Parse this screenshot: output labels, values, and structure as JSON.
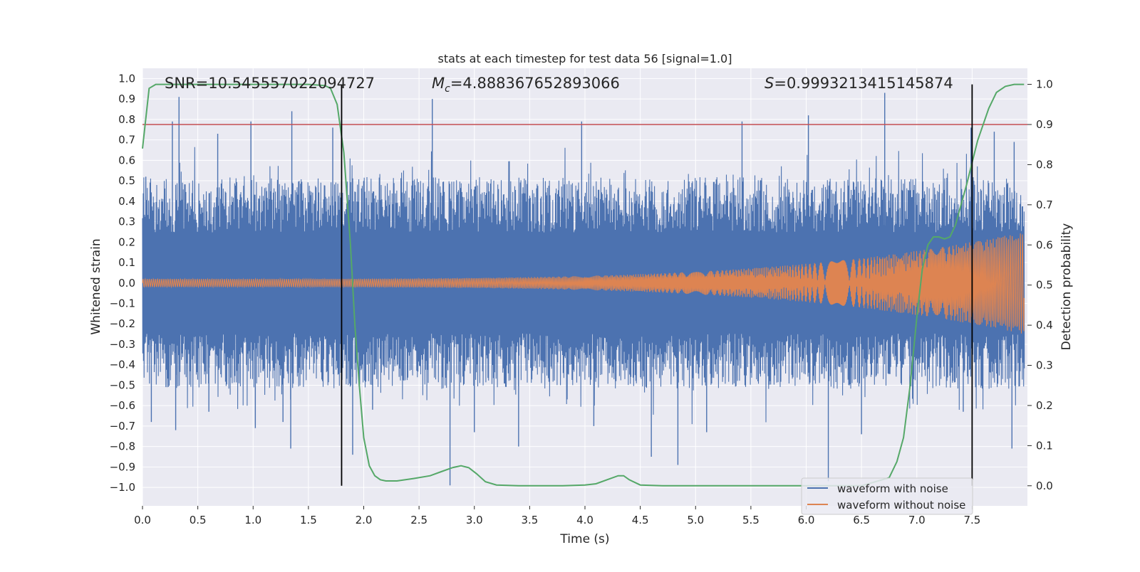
{
  "chart_data": {
    "type": "line",
    "title": "stats at each timestep for test data 56 [signal=1.0]",
    "xlabel": "Time (s)",
    "ylabel_left": "Whitened strain",
    "ylabel_right": "Detection probability",
    "xlim": [
      0.0,
      8.0
    ],
    "ylim_left": [
      -1.09,
      1.05
    ],
    "ylim_right": [
      -0.05,
      1.04
    ],
    "xticks": [
      0.0,
      0.5,
      1.0,
      1.5,
      2.0,
      2.5,
      3.0,
      3.5,
      4.0,
      4.5,
      5.0,
      5.5,
      6.0,
      6.5,
      7.0,
      7.5
    ],
    "xtick_labels": [
      "0.0",
      "0.5",
      "1.0",
      "1.5",
      "2.0",
      "2.5",
      "3.0",
      "3.5",
      "4.0",
      "4.5",
      "5.0",
      "5.5",
      "6.0",
      "6.5",
      "7.0",
      "7.5"
    ],
    "yticks_left": [
      1.0,
      0.9,
      0.8,
      0.7,
      0.6,
      0.5,
      0.4,
      0.3,
      0.2,
      0.1,
      0.0,
      -0.1,
      -0.2,
      -0.3,
      -0.4,
      -0.5,
      -0.6,
      -0.7,
      -0.8,
      -0.9,
      -1.0
    ],
    "ytick_labels_left": [
      "1.0",
      "0.9",
      "0.8",
      "0.7",
      "0.6",
      "0.5",
      "0.4",
      "0.3",
      "0.2",
      "0.1",
      "0.0",
      "−0.1",
      "−0.2",
      "−0.3",
      "−0.4",
      "−0.5",
      "−0.6",
      "−0.7",
      "−0.8",
      "−0.9",
      "−1.0"
    ],
    "yticks_right": [
      1.0,
      0.9,
      0.8,
      0.7,
      0.6,
      0.5,
      0.4,
      0.3,
      0.2,
      0.1,
      0.0
    ],
    "ytick_labels_right": [
      "1.0",
      "0.9",
      "0.8",
      "0.7",
      "0.6",
      "0.5",
      "0.4",
      "0.3",
      "0.2",
      "0.1",
      "0.0"
    ],
    "annotations": {
      "snr": "SNR=10.545557022094727",
      "mc_symbol": "M",
      "mc_subscript": "c",
      "mc_value": "=4.888367652893066",
      "s_symbol": "S",
      "s_value": "=0.9993213415145874"
    },
    "threshold": {
      "value": 0.9,
      "axis": "right",
      "color": "#c44e52"
    },
    "vlines": [
      1.8,
      7.5
    ],
    "vline_range_right": [
      0.0,
      1.0
    ],
    "series": [
      {
        "name": "waveform with noise",
        "color": "#4c72b0",
        "axis": "left",
        "envelope": {
          "t_start": 0.0,
          "t_end": 7.97,
          "typical_max": 0.45,
          "typical_min": -0.45
        },
        "peak_spikes": [
          [
            0.03,
            0.52
          ],
          [
            0.08,
            -0.68
          ],
          [
            0.27,
            0.79
          ],
          [
            0.33,
            0.91
          ],
          [
            0.3,
            -0.72
          ],
          [
            0.6,
            -0.63
          ],
          [
            0.68,
            0.73
          ],
          [
            0.98,
            0.79
          ],
          [
            1.02,
            -0.71
          ],
          [
            1.27,
            -0.68
          ],
          [
            1.35,
            0.84
          ],
          [
            1.34,
            -0.81
          ],
          [
            1.72,
            0.76
          ],
          [
            1.9,
            -0.84
          ],
          [
            2.08,
            -0.62
          ],
          [
            2.62,
            0.9
          ],
          [
            2.78,
            -0.99
          ],
          [
            3.0,
            -0.73
          ],
          [
            3.4,
            -0.8
          ],
          [
            3.97,
            0.79
          ],
          [
            4.08,
            -0.7
          ],
          [
            4.6,
            -0.85
          ],
          [
            4.84,
            -0.89
          ],
          [
            5.1,
            -0.73
          ],
          [
            5.42,
            0.79
          ],
          [
            6.02,
            0.82
          ],
          [
            6.2,
            -0.97
          ],
          [
            6.5,
            -0.74
          ],
          [
            6.71,
            0.93
          ],
          [
            7.42,
            -0.63
          ],
          [
            7.49,
            0.76
          ],
          [
            7.7,
            0.74
          ],
          [
            7.86,
            -0.81
          ],
          [
            7.88,
            0.69
          ]
        ]
      },
      {
        "name": "waveform without noise",
        "color": "#dd8452",
        "axis": "left",
        "chirp": {
          "t_start": 0.0,
          "t_end": 7.97,
          "amp_start": 0.02,
          "amp_end": 0.25,
          "f_start": 25.0,
          "f_end": 250.0
        }
      },
      {
        "name": "Detection probability",
        "color": "#55a868",
        "axis": "right",
        "x": [
          0.0,
          0.06,
          0.12,
          0.2,
          0.4,
          0.8,
          1.2,
          1.5,
          1.65,
          1.7,
          1.76,
          1.82,
          1.88,
          1.92,
          1.96,
          2.0,
          2.05,
          2.1,
          2.15,
          2.2,
          2.3,
          2.45,
          2.6,
          2.7,
          2.8,
          2.88,
          2.95,
          3.02,
          3.1,
          3.2,
          3.4,
          3.8,
          4.0,
          4.1,
          4.2,
          4.3,
          4.35,
          4.4,
          4.5,
          4.7,
          5.0,
          5.5,
          6.0,
          6.5,
          6.75,
          6.82,
          6.88,
          6.94,
          7.0,
          7.05,
          7.1,
          7.15,
          7.2,
          7.25,
          7.3,
          7.35,
          7.45,
          7.55,
          7.65,
          7.72,
          7.8,
          7.88,
          7.97
        ],
        "values": [
          0.84,
          0.99,
          1.0,
          1.0,
          1.0,
          1.0,
          1.0,
          1.0,
          0.997,
          0.99,
          0.95,
          0.83,
          0.6,
          0.4,
          0.25,
          0.12,
          0.05,
          0.025,
          0.015,
          0.012,
          0.012,
          0.018,
          0.025,
          0.035,
          0.045,
          0.05,
          0.045,
          0.03,
          0.01,
          0.002,
          0.0,
          0.0,
          0.002,
          0.005,
          0.015,
          0.025,
          0.025,
          0.015,
          0.002,
          0.0,
          0.0,
          0.0,
          0.0,
          0.0,
          0.02,
          0.06,
          0.12,
          0.25,
          0.42,
          0.54,
          0.6,
          0.62,
          0.62,
          0.615,
          0.62,
          0.65,
          0.75,
          0.86,
          0.94,
          0.98,
          0.995,
          1.0,
          1.0
        ]
      }
    ],
    "legend": {
      "position": "lower-right",
      "entries": [
        "waveform with noise",
        "waveform without noise"
      ]
    },
    "grid": true
  },
  "colors": {
    "axes_bg": "#eaeaf2",
    "grid": "#ffffff",
    "text": "#262626",
    "vline": "#000000"
  }
}
